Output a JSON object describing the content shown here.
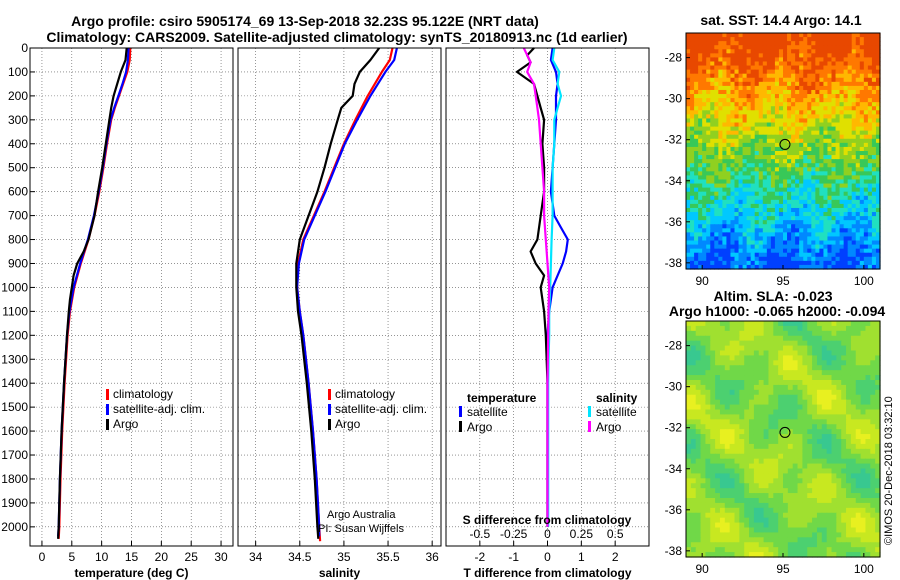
{
  "header": {
    "line1": "Argo profile: csiro 5905174_69 13-Sep-2018 32.23S 95.122E (NRT data)",
    "line2": "Climatology: CARS2009. Satellite-adjusted climatology: synTS_20180913.nc (1d earlier)"
  },
  "colors": {
    "climatology": "#ff0000",
    "satellite": "#0000ff",
    "argo": "#000000",
    "sat_t": "#0000ff",
    "sat_s": "#00e5ff",
    "argo_s": "#ff00ff",
    "grid": "#555555"
  },
  "credit": {
    "line1": "Argo Australia",
    "line2": "PI: Susan Wijffels"
  },
  "stamp": "©IMOS 20-Dec-2018 03:32:10",
  "chart_data": [
    {
      "type": "line",
      "name": "temperature",
      "xlabel": "temperature (deg C)",
      "xlim": [
        -2,
        32
      ],
      "ylim": [
        2080,
        0
      ],
      "xticks": [
        "0",
        "5",
        "10",
        "15",
        "20",
        "25",
        "30"
      ],
      "xtick_values": [
        0,
        5,
        10,
        15,
        20,
        25,
        30
      ],
      "yticks": [
        "0",
        "100",
        "200",
        "300",
        "400",
        "500",
        "600",
        "700",
        "800",
        "900",
        "1000",
        "1100",
        "1200",
        "1300",
        "1400",
        "1500",
        "1600",
        "1700",
        "1800",
        "1900",
        "2000"
      ],
      "ytick_values": [
        0,
        100,
        200,
        300,
        400,
        500,
        600,
        700,
        800,
        900,
        1000,
        1100,
        1200,
        1300,
        1400,
        1500,
        1600,
        1700,
        1800,
        1900,
        2000
      ],
      "legend": [
        "climatology",
        "satellite-adj. clim.",
        "Argo"
      ],
      "series": [
        {
          "name": "climatology",
          "color": "climatology",
          "depth": [
            0,
            50,
            100,
            150,
            200,
            250,
            300,
            400,
            500,
            600,
            700,
            800,
            900,
            1000,
            1100,
            1200,
            1400,
            1600,
            1800,
            2000,
            2050
          ],
          "values": [
            14.8,
            14.7,
            14.3,
            13.6,
            12.9,
            12.2,
            11.6,
            10.9,
            10.3,
            9.6,
            8.8,
            7.8,
            6.5,
            5.4,
            4.7,
            4.3,
            3.8,
            3.4,
            3.1,
            2.9,
            2.8
          ]
        },
        {
          "name": "satellite-adj. clim.",
          "color": "satellite",
          "depth": [
            0,
            50,
            100,
            150,
            200,
            250,
            300,
            400,
            500,
            600,
            700,
            800,
            900,
            1000,
            1100,
            1200,
            1400,
            1600,
            1800,
            2000,
            2040
          ],
          "values": [
            14.5,
            14.4,
            14.1,
            13.5,
            12.8,
            12.1,
            11.5,
            10.8,
            10.2,
            9.5,
            8.7,
            7.7,
            6.4,
            5.3,
            4.6,
            4.2,
            3.7,
            3.3,
            3.0,
            2.8,
            2.7
          ]
        },
        {
          "name": "Argo",
          "color": "argo",
          "depth": [
            0,
            50,
            100,
            150,
            200,
            250,
            300,
            400,
            500,
            600,
            700,
            800,
            850,
            900,
            950,
            1000,
            1050,
            1100,
            1200,
            1400,
            1600,
            1800,
            2000,
            2050
          ],
          "values": [
            14.2,
            14.0,
            13.2,
            12.6,
            12.0,
            11.6,
            11.3,
            10.7,
            10.1,
            9.4,
            8.8,
            7.8,
            7.0,
            5.9,
            5.3,
            5.0,
            4.7,
            4.5,
            4.2,
            3.7,
            3.3,
            3.0,
            2.8,
            2.7
          ]
        }
      ]
    },
    {
      "type": "line",
      "name": "salinity",
      "xlabel": "salinity",
      "xlim": [
        33.8,
        36.1
      ],
      "ylim": [
        2080,
        0
      ],
      "xticks": [
        "34",
        "34.5",
        "35",
        "35.5",
        "36"
      ],
      "xtick_values": [
        34,
        34.5,
        35,
        35.5,
        36
      ],
      "legend": [
        "climatology",
        "satellite-adj. clim.",
        "Argo"
      ],
      "series": [
        {
          "name": "climatology",
          "color": "climatology",
          "depth": [
            0,
            50,
            100,
            200,
            300,
            400,
            500,
            600,
            700,
            800,
            900,
            1000,
            1100,
            1200,
            1400,
            1600,
            1800,
            2000,
            2060
          ],
          "values": [
            35.55,
            35.52,
            35.43,
            35.27,
            35.13,
            35.0,
            34.89,
            34.78,
            34.66,
            34.54,
            34.48,
            34.47,
            34.5,
            34.54,
            34.6,
            34.65,
            34.69,
            34.72,
            34.73
          ]
        },
        {
          "name": "satellite-adj. clim.",
          "color": "satellite",
          "depth": [
            0,
            50,
            100,
            200,
            300,
            400,
            500,
            600,
            700,
            800,
            900,
            1000,
            1100,
            1200,
            1400,
            1600,
            1800,
            2000,
            2040
          ],
          "values": [
            35.6,
            35.57,
            35.47,
            35.3,
            35.15,
            35.01,
            34.9,
            34.79,
            34.67,
            34.55,
            34.49,
            34.47,
            34.5,
            34.54,
            34.6,
            34.65,
            34.69,
            34.72,
            34.72
          ]
        },
        {
          "name": "Argo",
          "color": "argo",
          "depth": [
            0,
            50,
            100,
            150,
            200,
            250,
            300,
            400,
            500,
            600,
            700,
            800,
            900,
            1000,
            1100,
            1200,
            1400,
            1600,
            1800,
            2000,
            2050
          ],
          "values": [
            35.4,
            35.3,
            35.18,
            35.12,
            35.1,
            34.97,
            34.93,
            34.85,
            34.78,
            34.7,
            34.6,
            34.5,
            34.46,
            34.46,
            34.48,
            34.52,
            34.58,
            34.63,
            34.67,
            34.7,
            34.71
          ]
        }
      ]
    },
    {
      "type": "line",
      "name": "difference",
      "xlabel": "T difference from climatology",
      "xlabel_top": "S difference from climatology",
      "xlim": [
        -3,
        3
      ],
      "ylim": [
        2080,
        0
      ],
      "xticks": [
        "-2",
        "-1",
        "0",
        "1",
        "2"
      ],
      "xtick_values": [
        -2,
        -1,
        0,
        1,
        2
      ],
      "s_ticks": [
        "-0.5",
        "-0.25",
        "0",
        "0.25",
        "0.5"
      ],
      "s_tick_values": [
        -2,
        -1,
        0,
        1,
        2
      ],
      "legend_t": {
        "title": "temperature",
        "items": [
          "satellite",
          "Argo"
        ]
      },
      "legend_s": {
        "title": "salinity",
        "items": [
          "satellite",
          "Argo"
        ]
      },
      "series": [
        {
          "name": "temperature satellite",
          "color": "sat_t",
          "depth": [
            0,
            50,
            100,
            150,
            200,
            300,
            400,
            500,
            600,
            700,
            750,
            800,
            850,
            900,
            950,
            1000,
            1100,
            1200,
            1400,
            1600,
            1800,
            2000
          ],
          "values": [
            0.15,
            0.1,
            0.25,
            0.3,
            0.25,
            0.25,
            0.2,
            0.15,
            0.1,
            0.2,
            0.4,
            0.6,
            0.55,
            0.45,
            0.3,
            0.15,
            0.05,
            0.0,
            0.0,
            0.0,
            0.0,
            0.0
          ]
        },
        {
          "name": "temperature Argo",
          "color": "argo",
          "depth": [
            0,
            30,
            60,
            100,
            130,
            150,
            200,
            250,
            300,
            400,
            500,
            600,
            700,
            800,
            850,
            900,
            950,
            1000,
            1100,
            1200,
            1400,
            1600,
            1800,
            2000
          ],
          "values": [
            -0.4,
            -0.6,
            -0.5,
            -0.9,
            -0.6,
            -0.4,
            -0.3,
            -0.2,
            -0.1,
            -0.15,
            -0.1,
            -0.1,
            -0.2,
            -0.3,
            -0.5,
            -0.35,
            -0.1,
            -0.2,
            -0.1,
            -0.05,
            0.0,
            0.0,
            0.0,
            0.0
          ]
        },
        {
          "name": "salinity satellite",
          "color": "sat_s",
          "depth": [
            0,
            50,
            100,
            150,
            200,
            250,
            300,
            400,
            500,
            600,
            700,
            800,
            900,
            1000,
            1100,
            1200,
            1300,
            1400,
            1600,
            1800,
            2000
          ],
          "values": [
            0.2,
            0.15,
            0.35,
            0.3,
            0.4,
            0.3,
            0.2,
            0.2,
            0.15,
            0.15,
            0.15,
            0.12,
            0.1,
            0.08,
            0.05,
            0.05,
            0.03,
            0.02,
            0.02,
            0.02,
            0.02
          ]
        },
        {
          "name": "salinity Argo",
          "color": "argo_s",
          "depth": [
            0,
            30,
            60,
            100,
            150,
            200,
            250,
            300,
            400,
            500,
            600,
            700,
            800,
            900,
            1000,
            1100,
            1200,
            1400,
            1600,
            1800,
            2000
          ],
          "values": [
            -0.7,
            -0.6,
            -0.5,
            -0.6,
            -0.4,
            -0.35,
            -0.3,
            -0.25,
            -0.2,
            -0.15,
            -0.1,
            -0.1,
            -0.05,
            0.0,
            0.05,
            0.03,
            0.02,
            0.0,
            0.0,
            0.0,
            0.0
          ]
        }
      ]
    },
    {
      "type": "heatmap",
      "name": "sst_map",
      "title": "sat. SST: 14.4 Argo: 14.1",
      "xlim": [
        89,
        101
      ],
      "ylim": [
        -38.3,
        -26.8
      ],
      "xticks": [
        "90",
        "95",
        "100"
      ],
      "xtick_values": [
        90,
        95,
        100
      ],
      "yticks": [
        "-28",
        "-30",
        "-32",
        "-34",
        "-36",
        "-38"
      ],
      "ytick_values": [
        -28,
        -30,
        -32,
        -34,
        -36,
        -38
      ],
      "marker": {
        "lon": 95.122,
        "lat": -32.23
      },
      "palette": [
        "#0040ff",
        "#0088ff",
        "#00c8ff",
        "#20e0c0",
        "#38c858",
        "#90d020",
        "#e0e000",
        "#ffb800",
        "#ff7800",
        "#e84800"
      ]
    },
    {
      "type": "heatmap",
      "name": "sla_map",
      "title": "Altim. SLA: -0.023",
      "subtitle": "Argo h1000: -0.065 h2000: -0.094",
      "xlim": [
        89,
        101
      ],
      "ylim": [
        -38.3,
        -26.8
      ],
      "xticks": [
        "90",
        "95",
        "100"
      ],
      "xtick_values": [
        90,
        95,
        100
      ],
      "yticks": [
        "-28",
        "-30",
        "-32",
        "-34",
        "-36",
        "-38"
      ],
      "ytick_values": [
        -28,
        -30,
        -32,
        -34,
        -36,
        -38
      ],
      "marker": {
        "lon": 95.122,
        "lat": -32.23
      },
      "palette": [
        "#38c890",
        "#4cd070",
        "#70d848",
        "#a0e030",
        "#c8e820",
        "#e8f020"
      ]
    }
  ]
}
